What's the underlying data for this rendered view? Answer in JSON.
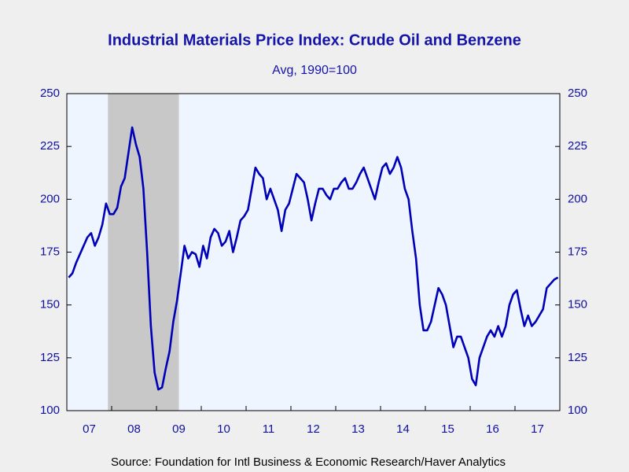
{
  "chart_data": {
    "type": "line",
    "title": "Industrial Materials Price Index: Crude Oil and Benzene",
    "subtitle": "Avg, 1990=100",
    "source": "Source:  Foundation for Intl Business & Economic Research/Haver Analytics",
    "x": [
      "2007-01",
      "2007-02",
      "2007-03",
      "2007-04",
      "2007-05",
      "2007-06",
      "2007-07",
      "2007-08",
      "2007-09",
      "2007-10",
      "2007-11",
      "2007-12",
      "2008-01",
      "2008-02",
      "2008-03",
      "2008-04",
      "2008-05",
      "2008-06",
      "2008-07",
      "2008-08",
      "2008-09",
      "2008-10",
      "2008-11",
      "2008-12",
      "2009-01",
      "2009-02",
      "2009-03",
      "2009-04",
      "2009-05",
      "2009-06",
      "2009-07",
      "2009-08",
      "2009-09",
      "2009-10",
      "2009-11",
      "2009-12",
      "2010-01",
      "2010-02",
      "2010-03",
      "2010-04",
      "2010-05",
      "2010-06",
      "2010-07",
      "2010-08",
      "2010-09",
      "2010-10",
      "2010-11",
      "2010-12",
      "2011-01",
      "2011-02",
      "2011-03",
      "2011-04",
      "2011-05",
      "2011-06",
      "2011-07",
      "2011-08",
      "2011-09",
      "2011-10",
      "2011-11",
      "2011-12",
      "2012-01",
      "2012-02",
      "2012-03",
      "2012-04",
      "2012-05",
      "2012-06",
      "2012-07",
      "2012-08",
      "2012-09",
      "2012-10",
      "2012-11",
      "2012-12",
      "2013-01",
      "2013-02",
      "2013-03",
      "2013-04",
      "2013-05",
      "2013-06",
      "2013-07",
      "2013-08",
      "2013-09",
      "2013-10",
      "2013-11",
      "2013-12",
      "2014-01",
      "2014-02",
      "2014-03",
      "2014-04",
      "2014-05",
      "2014-06",
      "2014-07",
      "2014-08",
      "2014-09",
      "2014-10",
      "2014-11",
      "2014-12",
      "2015-01",
      "2015-02",
      "2015-03",
      "2015-04",
      "2015-05",
      "2015-06",
      "2015-07",
      "2015-08",
      "2015-09",
      "2015-10",
      "2015-11",
      "2015-12",
      "2016-01",
      "2016-02",
      "2016-03",
      "2016-04",
      "2016-05",
      "2016-06",
      "2016-07",
      "2016-08",
      "2016-09",
      "2016-10",
      "2016-11",
      "2016-12",
      "2017-01",
      "2017-02",
      "2017-03",
      "2017-04",
      "2017-05",
      "2017-06",
      "2017-07",
      "2017-08",
      "2017-09",
      "2017-10",
      "2017-11",
      "2017-12"
    ],
    "series": [
      {
        "color": "#0000b8",
        "values": [
          163,
          165,
          170,
          174,
          178,
          182,
          184,
          178,
          182,
          188,
          198,
          193,
          193,
          196,
          206,
          210,
          222,
          234,
          226,
          220,
          205,
          175,
          140,
          118,
          110,
          111,
          120,
          128,
          142,
          152,
          165,
          178,
          172,
          175,
          174,
          168,
          178,
          172,
          182,
          186,
          184,
          178,
          180,
          185,
          175,
          182,
          190,
          192,
          195,
          205,
          215,
          212,
          210,
          200,
          205,
          200,
          195,
          185,
          195,
          198,
          205,
          212,
          210,
          208,
          200,
          190,
          198,
          205,
          205,
          202,
          200,
          205,
          205,
          208,
          210,
          205,
          205,
          208,
          212,
          215,
          210,
          205,
          200,
          208,
          215,
          217,
          212,
          215,
          220,
          215,
          205,
          200,
          185,
          172,
          150,
          138,
          138,
          142,
          150,
          158,
          155,
          150,
          140,
          130,
          135,
          135,
          130,
          125,
          115,
          112,
          125,
          130,
          135,
          138,
          135,
          140,
          135,
          140,
          150,
          155,
          157,
          148,
          140,
          145,
          140,
          142,
          145,
          148,
          158,
          160,
          162,
          163
        ]
      }
    ],
    "xlim": [
      "2007-01",
      "2017-12"
    ],
    "xticks": [
      {
        "value": "2007",
        "label": "07"
      },
      {
        "value": "2008",
        "label": "08"
      },
      {
        "value": "2009",
        "label": "09"
      },
      {
        "value": "2010",
        "label": "10"
      },
      {
        "value": "2011",
        "label": "11"
      },
      {
        "value": "2012",
        "label": "12"
      },
      {
        "value": "2013",
        "label": "13"
      },
      {
        "value": "2014",
        "label": "14"
      },
      {
        "value": "2015",
        "label": "15"
      },
      {
        "value": "2016",
        "label": "16"
      },
      {
        "value": "2017",
        "label": "17"
      }
    ],
    "ylim": [
      100,
      250
    ],
    "yticks": [
      100,
      125,
      150,
      175,
      200,
      225,
      250
    ],
    "y2lim": [
      100,
      250
    ],
    "y2ticks": [
      100,
      125,
      150,
      175,
      200,
      225,
      250
    ],
    "shaded_regions": [
      {
        "start": "2007-12",
        "end": "2009-06",
        "color": "#c8c8c8"
      }
    ]
  }
}
